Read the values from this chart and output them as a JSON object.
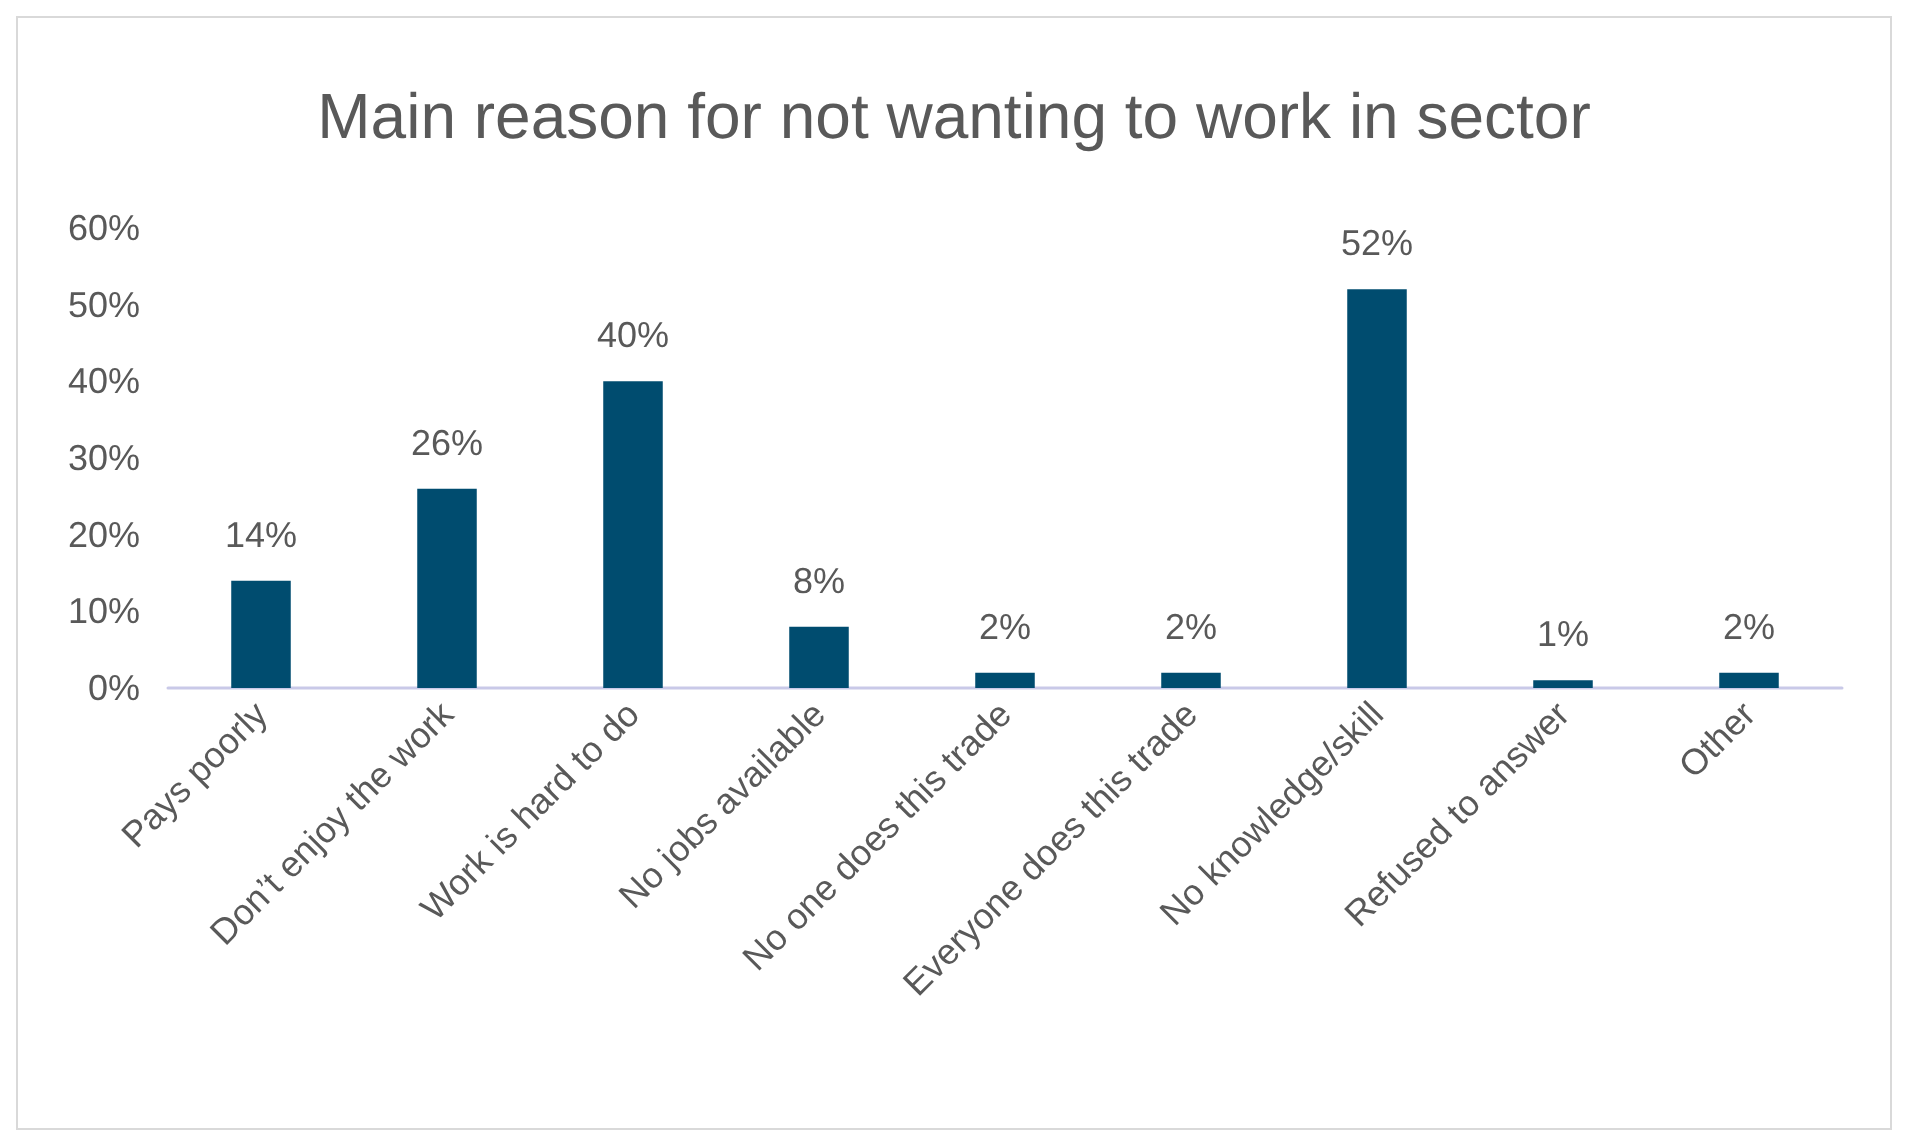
{
  "chart_data": {
    "type": "bar",
    "title": "Main reason for not wanting to work in sector",
    "categories": [
      "Pays poorly",
      "Don’t enjoy the work",
      "Work is hard to do",
      "No jobs available",
      "No one does this trade",
      "Everyone does this trade",
      "No knowledge/skill",
      "Refused to answer",
      "Other"
    ],
    "values": [
      14,
      26,
      40,
      8,
      2,
      2,
      52,
      1,
      2
    ],
    "value_labels": [
      "14%",
      "26%",
      "40%",
      "8%",
      "2%",
      "2%",
      "52%",
      "1%",
      "2%"
    ],
    "color": "#004c6f",
    "ylim": [
      0,
      60
    ],
    "yticks": [
      {
        "value": 0,
        "label": "0%"
      },
      {
        "value": 10,
        "label": "10%"
      },
      {
        "value": 20,
        "label": "20%"
      },
      {
        "value": 30,
        "label": "30%"
      },
      {
        "value": 40,
        "label": "40%"
      },
      {
        "value": 50,
        "label": "50%"
      },
      {
        "value": 60,
        "label": "60%"
      }
    ]
  }
}
